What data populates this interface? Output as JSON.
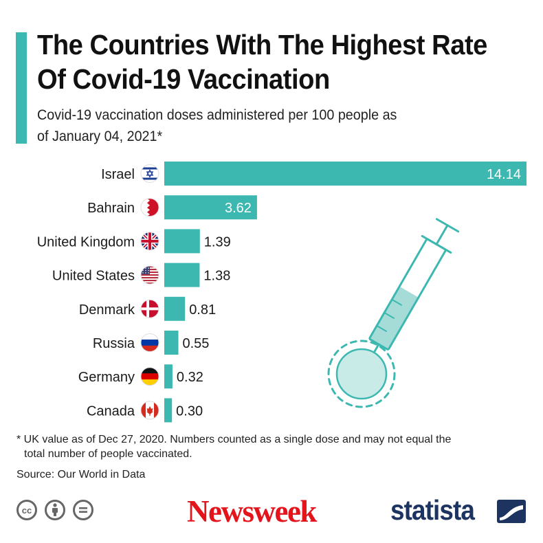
{
  "header": {
    "title": "The Countries With The Highest Rate Of Covid-19 Vaccination",
    "subtitle": "Covid-19 vaccination doses administered per 100 people as of January 04, 2021*"
  },
  "chart_data": {
    "type": "bar",
    "orientation": "horizontal",
    "title": "The Countries With The Highest Rate Of Covid-19 Vaccination",
    "subtitle": "Covid-19 vaccination doses administered per 100 people as of January 04, 2021*",
    "categories": [
      "Israel",
      "Bahrain",
      "United Kingdom",
      "United States",
      "Denmark",
      "Russia",
      "Germany",
      "Canada"
    ],
    "values": [
      14.14,
      3.62,
      1.39,
      1.38,
      0.81,
      0.55,
      0.32,
      0.3
    ],
    "value_labels": [
      "14.14",
      "3.62",
      "1.39",
      "1.38",
      "0.81",
      "0.55",
      "0.32",
      "0.30"
    ],
    "flag_icons": [
      "israel-flag-icon",
      "bahrain-flag-icon",
      "uk-flag-icon",
      "us-flag-icon",
      "denmark-flag-icon",
      "russia-flag-icon",
      "germany-flag-icon",
      "canada-flag-icon"
    ],
    "xlim": [
      0,
      14.14
    ],
    "bar_color": "#3cb8b1",
    "xlabel": "",
    "ylabel": ""
  },
  "footer": {
    "footnote": "* UK value as of Dec 27, 2020. Numbers counted as a single dose and may not equal the total number of people vaccinated.",
    "source": "Source: Our World in Data",
    "newsweek": "Newsweek",
    "statista": "statista",
    "cc_icons": [
      "creative-commons-icon",
      "attribution-icon",
      "no-derivatives-icon"
    ]
  },
  "colors": {
    "accent": "#3cb8b1",
    "newsweek_red": "#e3141b",
    "statista_navy": "#1d3461"
  }
}
